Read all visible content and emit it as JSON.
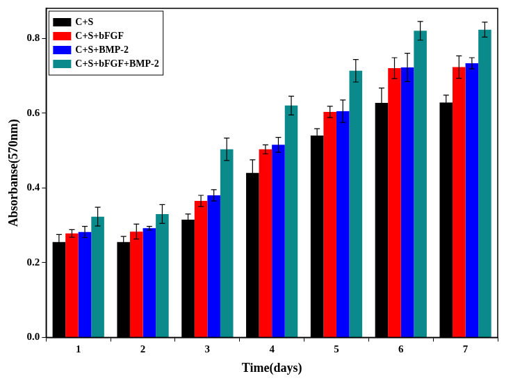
{
  "chart_data": {
    "type": "bar",
    "x_label": "Time(days)",
    "y_label": "Absorbanse(570nm)",
    "categories": [
      "1",
      "2",
      "3",
      "4",
      "5",
      "6",
      "7"
    ],
    "series": [
      {
        "name": "C+S",
        "color": "#000000",
        "values": [
          0.255,
          0.255,
          0.315,
          0.44,
          0.54,
          0.627,
          0.628
        ],
        "errors": [
          0.02,
          0.015,
          0.015,
          0.035,
          0.018,
          0.04,
          0.02
        ]
      },
      {
        "name": "C+S+bFGF",
        "color": "#ff0000",
        "values": [
          0.278,
          0.283,
          0.365,
          0.503,
          0.603,
          0.72,
          0.723
        ],
        "errors": [
          0.01,
          0.02,
          0.015,
          0.012,
          0.015,
          0.028,
          0.03
        ]
      },
      {
        "name": "C+S+BMP-2",
        "color": "#0000ff",
        "values": [
          0.282,
          0.292,
          0.38,
          0.515,
          0.605,
          0.722,
          0.733
        ],
        "errors": [
          0.015,
          0.005,
          0.015,
          0.02,
          0.03,
          0.038,
          0.015
        ]
      },
      {
        "name": "C+S+bFGF+BMP-2",
        "color": "#0a8a8a",
        "values": [
          0.323,
          0.33,
          0.503,
          0.62,
          0.713,
          0.82,
          0.823
        ],
        "errors": [
          0.025,
          0.025,
          0.03,
          0.025,
          0.03,
          0.025,
          0.02
        ]
      }
    ],
    "ylim": [
      0,
      0.88
    ],
    "yticks": [
      {
        "value": 0,
        "label": "0.0"
      },
      0.2,
      0.4,
      0.6,
      0.8
    ],
    "grid": false,
    "legend": "upper left"
  }
}
